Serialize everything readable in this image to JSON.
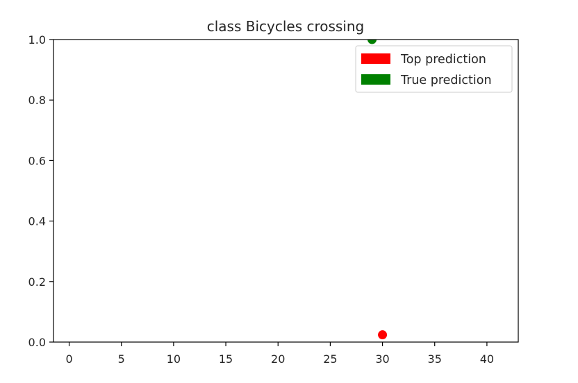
{
  "chart_data": {
    "type": "scatter",
    "title": "class Bicycles crossing",
    "xlabel": "",
    "ylabel": "",
    "xlim": [
      -1.5,
      43
    ],
    "ylim": [
      0,
      1.0
    ],
    "xticks": [
      0,
      5,
      10,
      15,
      20,
      25,
      30,
      35,
      40
    ],
    "yticks": [
      0.0,
      0.2,
      0.4,
      0.6,
      0.8,
      1.0
    ],
    "xtick_labels": [
      "0",
      "5",
      "10",
      "15",
      "20",
      "25",
      "30",
      "35",
      "40"
    ],
    "ytick_labels": [
      "0.0",
      "0.2",
      "0.4",
      "0.6",
      "0.8",
      "1.0"
    ],
    "grid": false,
    "legend_position": "top-right",
    "series": [
      {
        "name": "Top prediction",
        "color": "#ff0000",
        "points": [
          {
            "x": 30,
            "y": 0.024
          }
        ]
      },
      {
        "name": "True prediction",
        "color": "#008000",
        "points": [
          {
            "x": 29,
            "y": 1.0
          }
        ]
      }
    ]
  }
}
